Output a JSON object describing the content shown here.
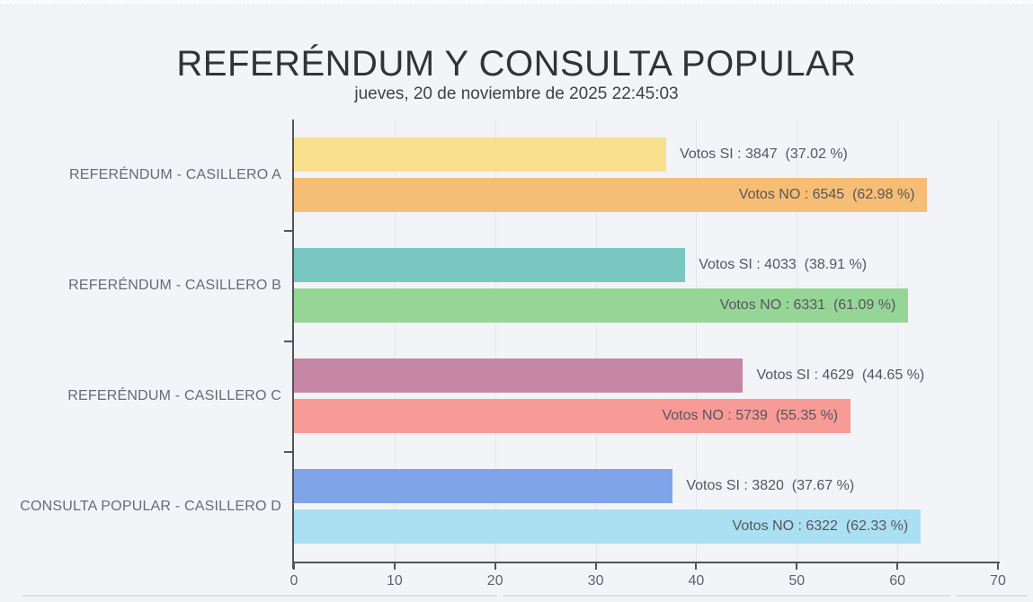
{
  "header": {
    "title": "REFERÉNDUM Y CONSULTA POPULAR",
    "subtitle": "jueves, 20 de noviembre de 2025 22:45:03"
  },
  "chart_data": {
    "type": "bar",
    "orientation": "horizontal",
    "title": "REFERÉNDUM Y CONSULTA POPULAR",
    "subtitle": "jueves, 20 de noviembre de 2025 22:45:03",
    "xlabel": "",
    "ylabel": "",
    "xlim": [
      0,
      70
    ],
    "x_ticks": [
      0,
      10,
      20,
      30,
      40,
      50,
      60,
      70
    ],
    "grid": true,
    "legend": false,
    "categories": [
      "REFERÉNDUM - CASILLERO A",
      "REFERÉNDUM - CASILLERO B",
      "REFERÉNDUM - CASILLERO C",
      "CONSULTA POPULAR - CASILLERO D"
    ],
    "groups": [
      {
        "category": "REFERÉNDUM - CASILLERO A",
        "bars": [
          {
            "series": "Votos SI",
            "votes": 3847,
            "percent": 37.02,
            "label": "Votos SI : 3847  (37.02 %)",
            "color": "#f8e08e",
            "label_position": "outside"
          },
          {
            "series": "Votos NO",
            "votes": 6545,
            "percent": 62.98,
            "label": "Votos NO : 6545  (62.98 %)",
            "color": "#f6be74",
            "label_position": "inside"
          }
        ]
      },
      {
        "category": "REFERÉNDUM - CASILLERO B",
        "bars": [
          {
            "series": "Votos SI",
            "votes": 4033,
            "percent": 38.91,
            "label": "Votos SI : 4033  (38.91 %)",
            "color": "#79c7c1",
            "label_position": "outside"
          },
          {
            "series": "Votos NO",
            "votes": 6331,
            "percent": 61.09,
            "label": "Votos NO : 6331  (61.09 %)",
            "color": "#95d696",
            "label_position": "inside"
          }
        ]
      },
      {
        "category": "REFERÉNDUM - CASILLERO C",
        "bars": [
          {
            "series": "Votos SI",
            "votes": 4629,
            "percent": 44.65,
            "label": "Votos SI : 4629  (44.65 %)",
            "color": "#c687a5",
            "label_position": "outside"
          },
          {
            "series": "Votos NO",
            "votes": 5739,
            "percent": 55.35,
            "label": "Votos NO : 5739  (55.35 %)",
            "color": "#f89b97",
            "label_position": "inside"
          }
        ]
      },
      {
        "category": "CONSULTA POPULAR - CASILLERO D",
        "bars": [
          {
            "series": "Votos SI",
            "votes": 3820,
            "percent": 37.67,
            "label": "Votos SI : 3820  (37.67 %)",
            "color": "#80a4ea",
            "label_position": "outside"
          },
          {
            "series": "Votos NO",
            "votes": 6322,
            "percent": 62.33,
            "label": "Votos NO : 6322  (62.33 %)",
            "color": "#abe0f2",
            "label_position": "inside"
          }
        ]
      }
    ],
    "colors": {
      "axis_line": "#53545a",
      "grid_line": "#e3e5eb",
      "tick_label": "#626269",
      "bar_label": "#56565d",
      "category_label": "#6a6a72",
      "background": "#f3f4f8"
    }
  }
}
